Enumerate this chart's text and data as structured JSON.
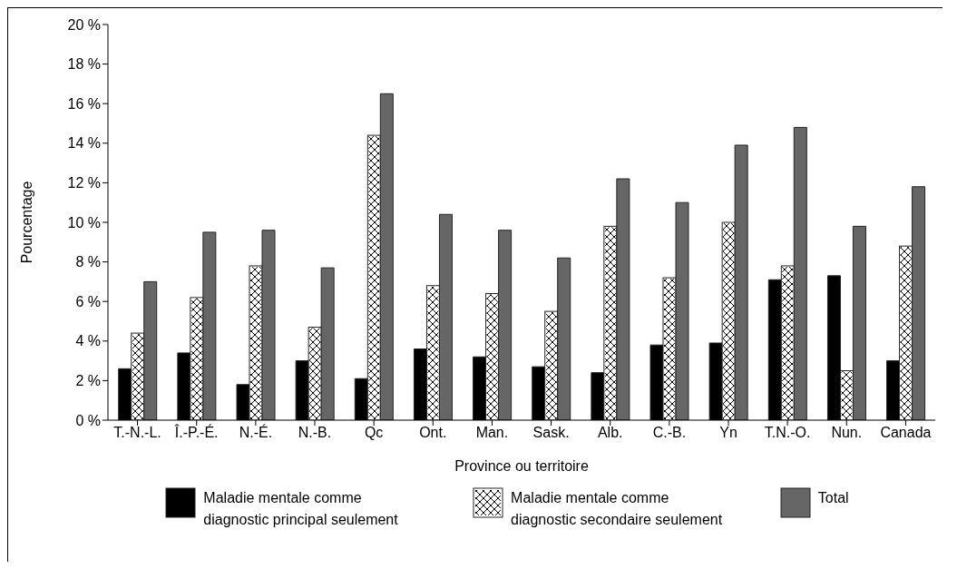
{
  "chart_data": {
    "type": "bar",
    "xlabel": "Province ou territoire",
    "ylabel": "Pourcentage",
    "categories": [
      "T.-N.-L.",
      "Î.-P.-É.",
      "N.-É.",
      "N.-B.",
      "Qc",
      "Ont.",
      "Man.",
      "Sask.",
      "Alb.",
      "C.-B.",
      "Yn",
      "T.N.-O.",
      "Nun.",
      "Canada"
    ],
    "series": [
      {
        "name": "Maladie mentale comme diagnostic principal seulement",
        "color": "#000000",
        "values": [
          2.6,
          3.4,
          1.8,
          3.0,
          2.1,
          3.6,
          3.2,
          2.7,
          2.4,
          3.8,
          3.9,
          7.1,
          7.3,
          3.0
        ]
      },
      {
        "name": "Maladie mentale comme diagnostic secondaire seulement",
        "color": "#ffffff",
        "values": [
          4.4,
          6.2,
          7.8,
          4.7,
          14.4,
          6.8,
          6.4,
          5.5,
          9.8,
          7.2,
          10.0,
          7.8,
          2.5,
          8.8
        ]
      },
      {
        "name": "Total",
        "color": "#666666",
        "values": [
          7.0,
          9.5,
          9.6,
          7.7,
          16.5,
          10.4,
          9.6,
          8.2,
          12.2,
          11.0,
          13.9,
          14.8,
          9.8,
          11.8
        ]
      }
    ],
    "ylim": [
      0,
      20
    ],
    "yticks": [
      {
        "value": 0,
        "label": "0 %"
      },
      {
        "value": 2,
        "label": "2 %"
      },
      {
        "value": 4,
        "label": "4 %"
      },
      {
        "value": 6,
        "label": "6 %"
      },
      {
        "value": 8,
        "label": "8 %"
      },
      {
        "value": 10,
        "label": "10 %"
      },
      {
        "value": 12,
        "label": "12 %"
      },
      {
        "value": 14,
        "label": "14 %"
      },
      {
        "value": 16,
        "label": "16 %"
      },
      {
        "value": 18,
        "label": "18 %"
      },
      {
        "value": 20,
        "label": "20 %"
      }
    ],
    "grid": false,
    "legend": "bottom"
  }
}
